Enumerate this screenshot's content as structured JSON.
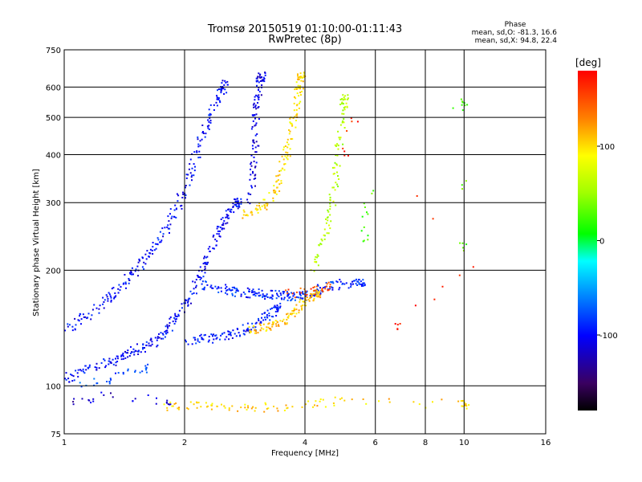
{
  "chart_data": {
    "type": "scatter",
    "title": "Tromsø 20150519 01:10:00-01:11:43",
    "subtitle": "RwPretec (8p)",
    "xlabel": "Frequency [MHz]",
    "ylabel": "Stationary phase Virtual Height [km]",
    "x_scale": "log",
    "y_scale": "log",
    "xlim": [
      1,
      16
    ],
    "ylim": [
      75,
      750
    ],
    "x_ticks": [
      "1",
      "2",
      "4",
      "6",
      "8",
      "10",
      "16"
    ],
    "y_ticks": [
      "75",
      "100",
      "200",
      "300",
      "400",
      "500",
      "600",
      "750"
    ],
    "grid": true,
    "phase_stats": {
      "heading": "Phase",
      "line_o": "mean, sd,O: -81.3, 16.6",
      "line_x": "mean, sd,X:  94.8, 22.4"
    },
    "colorbar": {
      "label": "[deg]",
      "range": [
        -180,
        180
      ],
      "ticks": [
        "100",
        "0",
        "-100"
      ]
    },
    "traces": [
      {
        "name": "",
        "phase": -100,
        "points": [
          [
            1.0,
            105
          ],
          [
            1.1,
            110
          ],
          [
            1.2,
            112
          ],
          [
            1.3,
            116
          ],
          [
            1.4,
            120
          ],
          [
            1.5,
            124
          ],
          [
            1.6,
            128
          ],
          [
            1.7,
            132
          ],
          [
            1.8,
            140
          ],
          [
            1.9,
            150
          ],
          [
            2.0,
            165
          ],
          [
            2.1,
            180
          ],
          [
            2.2,
            200
          ],
          [
            2.3,
            225
          ],
          [
            2.4,
            250
          ],
          [
            2.5,
            270
          ],
          [
            2.6,
            285
          ],
          [
            2.7,
            300
          ]
        ]
      },
      {
        "name": "",
        "phase": -100,
        "points": [
          [
            1.0,
            140
          ],
          [
            1.1,
            150
          ],
          [
            1.2,
            160
          ],
          [
            1.3,
            172
          ],
          [
            1.4,
            185
          ],
          [
            1.5,
            200
          ],
          [
            1.6,
            215
          ],
          [
            1.7,
            235
          ],
          [
            1.8,
            260
          ],
          [
            1.9,
            290
          ],
          [
            2.0,
            330
          ],
          [
            2.1,
            380
          ],
          [
            2.2,
            440
          ],
          [
            2.3,
            500
          ],
          [
            2.4,
            560
          ],
          [
            2.5,
            610
          ]
        ]
      },
      {
        "name": "",
        "phase": -110,
        "points": [
          [
            2.9,
            300
          ],
          [
            2.95,
            360
          ],
          [
            3.0,
            420
          ],
          [
            3.0,
            480
          ],
          [
            3.0,
            540
          ],
          [
            3.05,
            600
          ],
          [
            3.1,
            640
          ]
        ]
      },
      {
        "name": "",
        "phase": -90,
        "points": [
          [
            2.2,
            185
          ],
          [
            2.4,
            180
          ],
          [
            2.6,
            178
          ],
          [
            2.8,
            176
          ],
          [
            3.0,
            175
          ],
          [
            3.2,
            174
          ],
          [
            3.4,
            173
          ],
          [
            3.6,
            172
          ],
          [
            3.8,
            171
          ],
          [
            4.0,
            172
          ],
          [
            4.3,
            178
          ],
          [
            4.6,
            182
          ],
          [
            5.0,
            185
          ],
          [
            5.5,
            188
          ]
        ]
      },
      {
        "name": "",
        "phase": -95,
        "points": [
          [
            2.0,
            132
          ],
          [
            2.2,
            133
          ],
          [
            2.4,
            134
          ],
          [
            2.6,
            136
          ],
          [
            2.8,
            140
          ],
          [
            3.0,
            146
          ],
          [
            3.2,
            152
          ],
          [
            3.4,
            160
          ]
        ]
      },
      {
        "name": "",
        "phase": -80,
        "points": [
          [
            1.1,
            100
          ],
          [
            1.2,
            102
          ],
          [
            1.3,
            105
          ],
          [
            1.4,
            108
          ],
          [
            1.5,
            110
          ],
          [
            1.6,
            112
          ]
        ]
      },
      {
        "name": "",
        "phase": 100,
        "points": [
          [
            2.8,
            280
          ],
          [
            3.0,
            290
          ],
          [
            3.2,
            300
          ],
          [
            3.4,
            330
          ],
          [
            3.5,
            370
          ],
          [
            3.6,
            420
          ],
          [
            3.7,
            480
          ],
          [
            3.8,
            540
          ],
          [
            3.85,
            600
          ],
          [
            3.9,
            640
          ]
        ]
      },
      {
        "name": "",
        "phase": 110,
        "points": [
          [
            2.9,
            140
          ],
          [
            3.1,
            142
          ],
          [
            3.3,
            145
          ],
          [
            3.5,
            148
          ],
          [
            3.7,
            155
          ],
          [
            3.9,
            162
          ],
          [
            4.1,
            170
          ],
          [
            4.3,
            175
          ]
        ]
      },
      {
        "name": "",
        "phase": 150,
        "points": [
          [
            3.6,
            175
          ],
          [
            3.8,
            176
          ],
          [
            4.0,
            177
          ],
          [
            4.2,
            178
          ],
          [
            4.4,
            180
          ],
          [
            4.6,
            182
          ]
        ]
      },
      {
        "name": "",
        "phase": 60,
        "points": [
          [
            4.2,
            200
          ],
          [
            4.4,
            240
          ],
          [
            4.6,
            280
          ],
          [
            4.7,
            330
          ],
          [
            4.8,
            400
          ],
          [
            4.9,
            480
          ],
          [
            5.0,
            560
          ]
        ]
      },
      {
        "name": "",
        "phase": 105,
        "points": [
          [
            1.8,
            88
          ],
          [
            2.1,
            90
          ],
          [
            2.5,
            89
          ],
          [
            3.0,
            88
          ],
          [
            4.0,
            90
          ],
          [
            5.0,
            92
          ],
          [
            10.0,
            90
          ]
        ]
      },
      {
        "name": "",
        "phase": -120,
        "points": [
          [
            1.05,
            90
          ],
          [
            1.15,
            92
          ],
          [
            1.25,
            95
          ],
          [
            1.5,
            93
          ],
          [
            1.8,
            92
          ]
        ]
      },
      {
        "name": "",
        "phase": 30,
        "points": [
          [
            5.6,
            240
          ],
          [
            5.6,
            260
          ],
          [
            5.6,
            300
          ],
          [
            9.8,
            560
          ],
          [
            10.0,
            540
          ],
          [
            9.9,
            230
          ]
        ]
      },
      {
        "name": "",
        "phase": 170,
        "points": [
          [
            5.0,
            400
          ],
          [
            5.2,
            500
          ],
          [
            10.5,
            205
          ],
          [
            6.8,
            145
          ]
        ]
      }
    ]
  }
}
